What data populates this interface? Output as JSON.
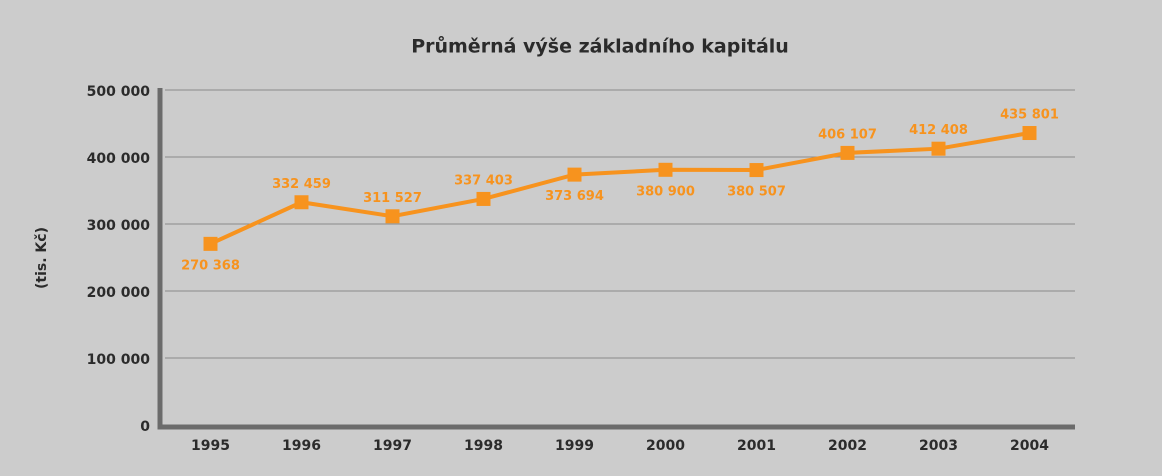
{
  "chart_data": {
    "type": "line",
    "title": "Průměrná výše základního kapitálu",
    "y_label": "(tis. Kč)",
    "categories": [
      "1995",
      "1996",
      "1997",
      "1998",
      "1999",
      "2000",
      "2001",
      "2002",
      "2003",
      "2004"
    ],
    "series": [
      {
        "name": "Průměrná výše základního kapitálu",
        "color": "#f7931e",
        "values": [
          270368,
          332459,
          311527,
          337403,
          373694,
          380900,
          380507,
          406107,
          412408,
          435801
        ],
        "value_labels": [
          "270 368",
          "332 459",
          "311 527",
          "337 403",
          "373 694",
          "380 900",
          "380 507",
          "406 107",
          "412 408",
          "435 801"
        ]
      }
    ],
    "ylim": [
      0,
      500000
    ],
    "yticks": [
      {
        "value": 0,
        "label": "0"
      },
      {
        "value": 100000,
        "label": "100 000"
      },
      {
        "value": 200000,
        "label": "200 000"
      },
      {
        "value": 300000,
        "label": "300 000"
      },
      {
        "value": 400000,
        "label": "400 000"
      },
      {
        "value": 500000,
        "label": "500 000"
      }
    ],
    "grid": true
  }
}
